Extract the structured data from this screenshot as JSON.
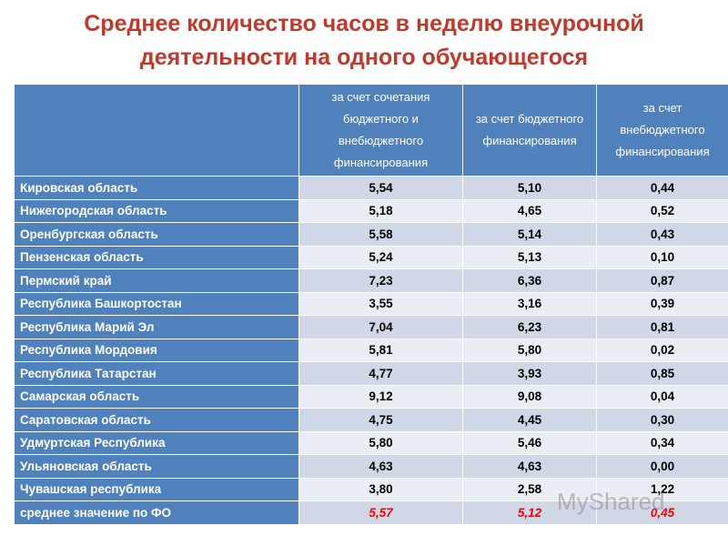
{
  "title": "Среднее количество часов в неделю внеурочной деятельности на одного обучающегося",
  "table": {
    "headers": [
      "за счет сочетания бюджетного и внебюджетного финансирования",
      "за счет бюджетного финансирования",
      "за счет внебюджетного финансирования"
    ],
    "rows": [
      [
        "Кировская область",
        "5,54",
        "5,10",
        "0,44"
      ],
      [
        "Нижегородская область",
        "5,18",
        "4,65",
        "0,52"
      ],
      [
        "Оренбургская область",
        "5,58",
        "5,14",
        "0,43"
      ],
      [
        "Пензенская область",
        "5,24",
        "5,13",
        "0,10"
      ],
      [
        "Пермский край",
        "7,23",
        "6,36",
        "0,87"
      ],
      [
        "Республика Башкортостан",
        "3,55",
        "3,16",
        "0,39"
      ],
      [
        "Республика Марий Эл",
        "7,04",
        "6,23",
        "0,81"
      ],
      [
        "Республика Мордовия",
        "5,81",
        "5,80",
        "0,02"
      ],
      [
        "Республика Татарстан",
        "4,77",
        "3,93",
        "0,85"
      ],
      [
        "Самарская область",
        "9,12",
        "9,08",
        "0,04"
      ],
      [
        "Саратовская область",
        "4,75",
        "4,45",
        "0,30"
      ],
      [
        "Удмуртская Республика",
        "5,80",
        "5,46",
        "0,34"
      ],
      [
        "Ульяновская область",
        "4,63",
        "4,63",
        "0,00"
      ],
      [
        "Чувашская республика",
        "3,80",
        "2,58",
        "1,22"
      ],
      [
        "среднее значение по ФО",
        "5,57",
        "5,12",
        "0,45"
      ]
    ]
  },
  "watermark": "MyShared"
}
